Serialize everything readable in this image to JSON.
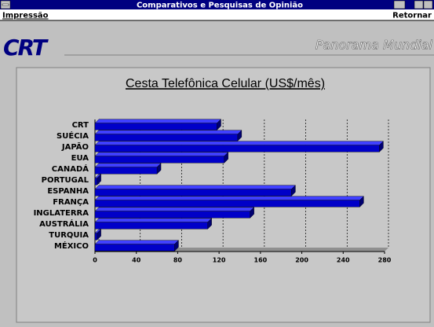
{
  "window": {
    "title": "Comparativos e Pesquisas de Opinião",
    "menu_left": "Impressão",
    "menu_right": "Retornar"
  },
  "header": {
    "logo": "CRT",
    "banner": "Panorama Mundial"
  },
  "chart_data": {
    "type": "bar",
    "orientation": "horizontal",
    "title": "Cesta Telefônica Celular (US$/mês)",
    "categories": [
      "CRT",
      "SUÉCIA",
      "JAPÃO",
      "EUA",
      "CANADÁ",
      "PORTUGAL",
      "ESPANHA",
      "FRANÇA",
      "INGLATERRA",
      "AUSTRÁLIA",
      "TURQUIA",
      "MÉXICO"
    ],
    "values": [
      118,
      138,
      275,
      125,
      60,
      2,
      190,
      256,
      150,
      109,
      2,
      77
    ],
    "color": "#0000c8",
    "xlim": [
      0,
      280
    ],
    "xticks": [
      0,
      40,
      80,
      120,
      160,
      200,
      240,
      280
    ],
    "grid": true
  }
}
